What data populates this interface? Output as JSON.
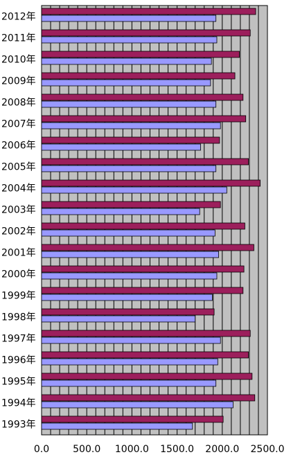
{
  "chart_data": {
    "type": "bar",
    "orientation": "horizontal",
    "categories": [
      "2012年",
      "2011年",
      "2010年",
      "2009年",
      "2008年",
      "2007年",
      "2006年",
      "2005年",
      "2004年",
      "2003年",
      "2002年",
      "2001年",
      "2000年",
      "1999年",
      "1998年",
      "1997年",
      "1996年",
      "1995年",
      "1994年",
      "1993年"
    ],
    "series": [
      {
        "color": "#9C1F5C",
        "values": [
          2370,
          2310,
          2190,
          2140,
          2230,
          2260,
          1970,
          2290,
          2420,
          1980,
          2250,
          2350,
          2240,
          2230,
          1910,
          2310,
          2290,
          2330,
          2360,
          2010
        ]
      },
      {
        "color": "#9999FF",
        "values": [
          1930,
          1940,
          1880,
          1870,
          1930,
          1980,
          1760,
          1930,
          2050,
          1750,
          1920,
          1960,
          1940,
          1890,
          1700,
          1980,
          1950,
          1930,
          2120,
          1670
        ]
      }
    ],
    "x_ticks": [
      "0.0",
      "500.0",
      "1000.0",
      "1500.0",
      "2000.0",
      "2500.0"
    ],
    "xlim": [
      0,
      2500
    ],
    "grid": true,
    "plot_background": "#C0C0C0",
    "grid_color": "#000000"
  }
}
